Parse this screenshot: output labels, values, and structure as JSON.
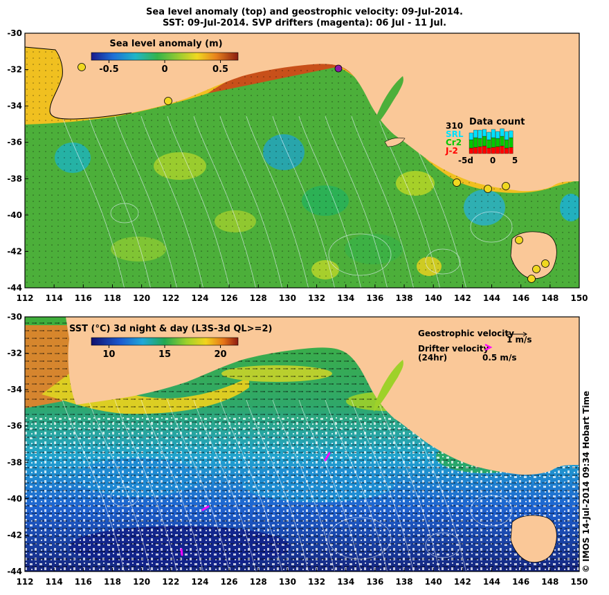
{
  "title_line1": "Sea level anomaly (top) and geostrophic velocity: 09-Jul-2014.",
  "title_line2": "SST: 09-Jul-2014. SVP drifters (magenta): 06 Jul - 11 Jul.",
  "x_ticks": [
    "112",
    "114",
    "116",
    "118",
    "120",
    "122",
    "124",
    "126",
    "128",
    "130",
    "132",
    "134",
    "136",
    "138",
    "140",
    "142",
    "144",
    "146",
    "148",
    "150"
  ],
  "y_ticks": [
    "-30",
    "-32",
    "-34",
    "-36",
    "-38",
    "-40",
    "-42",
    "-44"
  ],
  "top_panel": {
    "colorbar_title": "Sea level anomaly (m)",
    "colorbar_ticks": [
      "-0.5",
      "0",
      "0.5"
    ],
    "data_count": {
      "title": "Data count",
      "max_label": "310",
      "series": [
        "SRL",
        "Cr2",
        "J-2"
      ],
      "series_colors": [
        "#00e0ff",
        "#00c800",
        "#ff0000"
      ],
      "x_labels": [
        "-5d",
        "0",
        "5"
      ]
    }
  },
  "bottom_panel": {
    "colorbar_title": "SST (°C) 3d night & day (L3S-3d QL>=2)",
    "colorbar_ticks": [
      "10",
      "15",
      "20"
    ],
    "geo_velocity_label": "Geostrophic velocity",
    "geo_velocity_scale": "1 m/s",
    "drifter_label_1": "Drifter velocity",
    "drifter_label_2": "(24hr)",
    "drifter_scale": "0.5 m/s"
  },
  "credit": "© IMOS 14-Jul-2014 09:34 Hobart Time",
  "colors": {
    "land": "#fac898",
    "drifter": "#ff00ff"
  }
}
